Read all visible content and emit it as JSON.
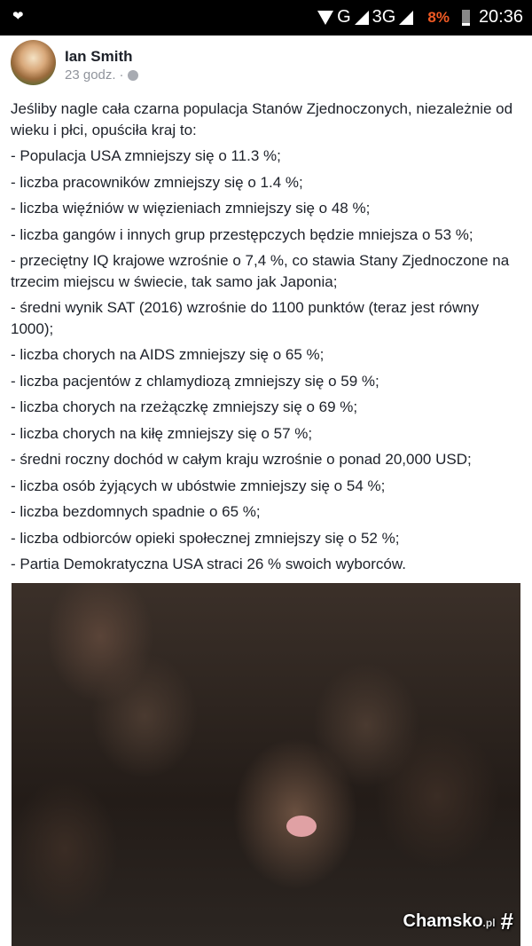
{
  "status_bar": {
    "left_icon": "heart-pulse-icon",
    "network1": "G",
    "network2": "3G",
    "battery_percent": "8%",
    "battery_color": "#f05a24",
    "time": "20:36"
  },
  "post": {
    "author": "Ian Smith",
    "time": "23 godz.",
    "separator": "·",
    "privacy_icon": "globe-icon",
    "paragraphs": [
      "Jeśliby nagle cała czarna populacja Stanów Zjednoczonych, niezależnie od wieku i płci, opuściła kraj to:",
      "- Populacja USA zmniejszy się o 11.3 %;",
      "- liczba pracowników zmniejszy się o 1.4 %;",
      "- liczba więźniów w więzieniach zmniejszy się o 48 %;",
      "- liczba gangów i innych grup przestępczych będzie mniejsza o 53 %;",
      "- przeciętny IQ krajowe wzrośnie o 7,4 %, co stawia Stany Zjednoczone na trzecim miejscu w świecie, tak samo jak Japonia;",
      "- średni wynik SAT (2016) wzrośnie do 1100 punktów (teraz jest równy 1000);",
      "- liczba chorych na AIDS zmniejszy się o 65 %;",
      "- liczba pacjentów z chlamydiozą zmniejszy się o 59 %;",
      "- liczba chorych na rzeżączkę zmniejszy się o 69 %;",
      "- liczba chorych na kiłę zmniejszy się o 57 %;",
      "- średni roczny dochód w całym kraju wzrośnie o ponad 20,000 USD;",
      "- liczba osób żyjących w ubóstwie zmniejszy się o 54 %;",
      "- liczba bezdomnych spadnie o 65 %;",
      "- liczba odbiorców opieki społecznej zmniejszy się o 52 %;",
      "- Partia Demokratyczna USA straci 26 % swoich wyborców."
    ],
    "watermark": {
      "name": "Chamsko",
      "tld": ".pl"
    }
  }
}
